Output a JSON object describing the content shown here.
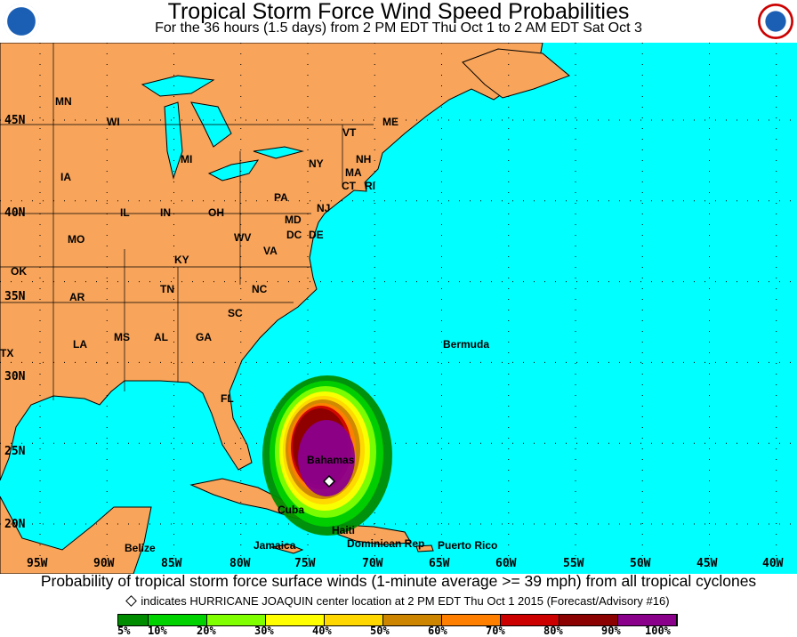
{
  "header": {
    "title": "Tropical Storm Force Wind Speed Probabilities",
    "subtitle": "For the 36 hours (1.5 days) from 2 PM EDT Thu Oct 1 to 2 AM EDT Sat Oct 3"
  },
  "logos": {
    "left": "NOAA",
    "right": "National Weather Service"
  },
  "colors": {
    "ocean": "#00ffff",
    "land": "#f8a45a",
    "lake": "#00ffff"
  },
  "lon_labels": [
    "95W",
    "90W",
    "85W",
    "80W",
    "75W",
    "70W",
    "65W",
    "60W",
    "55W",
    "50W",
    "45W",
    "40W"
  ],
  "lat_labels": [
    "45N",
    "40N",
    "35N",
    "30N",
    "25N",
    "20N"
  ],
  "place_labels": [
    "MN",
    "WI",
    "MI",
    "IA",
    "IL",
    "IN",
    "OH",
    "MO",
    "KY",
    "WV",
    "VA",
    "PA",
    "NY",
    "VT",
    "NH",
    "ME",
    "MA",
    "CT",
    "RI",
    "NJ",
    "MD",
    "DC",
    "DE",
    "NC",
    "TN",
    "AR",
    "OK",
    "TX",
    "SC",
    "MS",
    "AL",
    "GA",
    "LA",
    "FL",
    "Bermuda",
    "Bahamas",
    "Cuba",
    "Haiti",
    "Dominican Rep",
    "Jamaica",
    "Puerto Rico",
    "Belize"
  ],
  "caption": "Probability of tropical storm force surface winds (1-minute average >= 39 mph) from all tropical cyclones",
  "storm_note": "indicates HURRICANE JOAQUIN center location at 2 PM EDT Thu Oct 1 2015 (Forecast/Advisory #16)",
  "storm": {
    "name": "HURRICANE JOAQUIN",
    "lat": 23.0,
    "lon": -73.5
  },
  "legend": {
    "labels": [
      "5%",
      "10%",
      "20%",
      "30%",
      "40%",
      "50%",
      "60%",
      "70%",
      "80%",
      "90%",
      "100%"
    ],
    "colors": [
      "#008c00",
      "#00d200",
      "#80ff00",
      "#ffff00",
      "#ffd700",
      "#cd8500",
      "#ff7f00",
      "#cd0000",
      "#8b0000",
      "#8b008b"
    ]
  }
}
